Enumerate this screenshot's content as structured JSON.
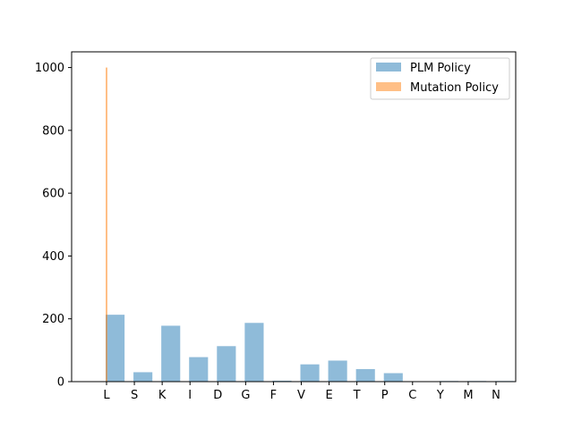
{
  "chart_data": {
    "type": "bar",
    "title": "",
    "xlabel": "",
    "ylabel": "",
    "categories": [
      "L",
      "S",
      "K",
      "I",
      "D",
      "G",
      "F",
      "V",
      "E",
      "T",
      "P",
      "C",
      "Y",
      "M",
      "N"
    ],
    "ylim": [
      0,
      1050
    ],
    "yticks": [
      0,
      200,
      400,
      600,
      800,
      1000
    ],
    "grid": false,
    "legend_position": "top-right",
    "series": [
      {
        "name": "PLM Policy",
        "color": "#1f77b4",
        "opacity": 0.5,
        "values": [
          213,
          30,
          178,
          78,
          113,
          187,
          3,
          55,
          67,
          40,
          27,
          0,
          2,
          2,
          2
        ]
      },
      {
        "name": "Mutation Policy",
        "color": "#ff7f0e",
        "opacity": 0.5,
        "values": [
          1000,
          0,
          0,
          0,
          0,
          0,
          0,
          0,
          0,
          0,
          0,
          0,
          0,
          0,
          0
        ]
      }
    ]
  }
}
